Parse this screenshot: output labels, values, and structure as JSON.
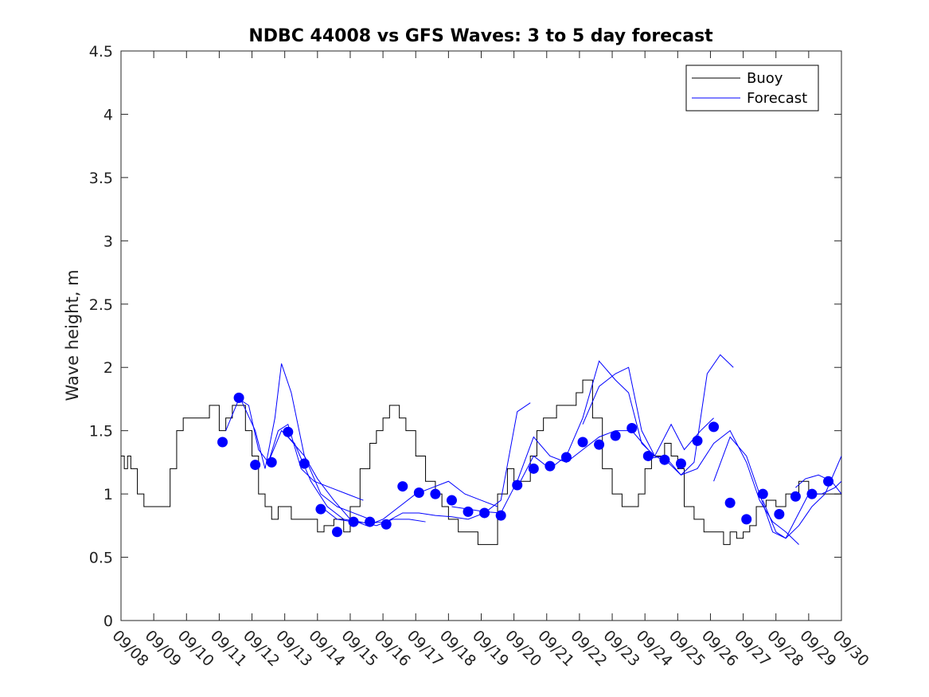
{
  "chart_data": {
    "type": "line",
    "title": "NDBC 44008 vs GFS Waves: 3 to 5 day forecast",
    "xlabel": "",
    "ylabel": "Wave height, m",
    "ylim": [
      0,
      4.5
    ],
    "yticks": [
      0,
      0.5,
      1,
      1.5,
      2,
      2.5,
      3,
      3.5,
      4,
      4.5
    ],
    "ytick_labels": [
      "0",
      "0.5",
      "1",
      "1.5",
      "2",
      "2.5",
      "3",
      "3.5",
      "4",
      "4.5"
    ],
    "xlim": [
      0,
      22
    ],
    "x_unit": "days since 09/08",
    "xtick_labels": [
      "09/08",
      "09/09",
      "09/10",
      "09/11",
      "09/12",
      "09/13",
      "09/14",
      "09/15",
      "09/16",
      "09/17",
      "09/18",
      "09/19",
      "09/20",
      "09/21",
      "09/22",
      "09/23",
      "09/24",
      "09/25",
      "09/26",
      "09/27",
      "09/28",
      "09/29",
      "09/30"
    ],
    "legend": {
      "placement": "top-right",
      "entries": [
        "Buoy",
        "Forecast"
      ]
    },
    "colors": {
      "buoy": "#000000",
      "forecast": "#0000ff"
    },
    "series": [
      {
        "name": "Buoy",
        "x": [
          0,
          0.1,
          0.2,
          0.3,
          0.5,
          0.7,
          1.0,
          1.3,
          1.5,
          1.7,
          1.9,
          2.1,
          2.4,
          2.7,
          3.0,
          3.2,
          3.4,
          3.6,
          3.8,
          4.0,
          4.2,
          4.4,
          4.6,
          4.8,
          5.0,
          5.2,
          5.4,
          5.6,
          5.8,
          6.0,
          6.2,
          6.5,
          6.8,
          7.0,
          7.3,
          7.6,
          7.8,
          8.0,
          8.2,
          8.5,
          8.7,
          9.0,
          9.3,
          9.6,
          9.8,
          10.0,
          10.3,
          10.6,
          10.9,
          11.2,
          11.5,
          11.8,
          12.0,
          12.2,
          12.5,
          12.7,
          12.9,
          13.1,
          13.3,
          13.6,
          13.9,
          14.1,
          14.4,
          14.7,
          15.0,
          15.3,
          15.6,
          15.8,
          16.0,
          16.2,
          16.4,
          16.6,
          16.8,
          17.0,
          17.2,
          17.5,
          17.8,
          18.1,
          18.4,
          18.6,
          18.8,
          19.0,
          19.2,
          19.4,
          19.7,
          20.0,
          20.3,
          20.5,
          20.7,
          21.0,
          21.3,
          21.6,
          22.0
        ],
        "y": [
          1.3,
          1.2,
          1.3,
          1.2,
          1.0,
          0.9,
          0.9,
          0.9,
          1.2,
          1.5,
          1.6,
          1.6,
          1.6,
          1.7,
          1.5,
          1.6,
          1.7,
          1.7,
          1.5,
          1.3,
          1.0,
          0.9,
          0.8,
          0.9,
          0.9,
          0.8,
          0.8,
          0.8,
          0.8,
          0.7,
          0.75,
          0.8,
          0.7,
          0.9,
          1.2,
          1.4,
          1.5,
          1.6,
          1.7,
          1.6,
          1.5,
          1.3,
          1.1,
          1.0,
          0.9,
          0.8,
          0.7,
          0.7,
          0.6,
          0.6,
          1.0,
          1.2,
          1.1,
          1.1,
          1.3,
          1.5,
          1.6,
          1.6,
          1.7,
          1.7,
          1.8,
          1.9,
          1.6,
          1.2,
          1.0,
          0.9,
          0.9,
          1.0,
          1.2,
          1.3,
          1.3,
          1.4,
          1.3,
          1.2,
          0.9,
          0.8,
          0.7,
          0.7,
          0.6,
          0.7,
          0.65,
          0.7,
          0.75,
          0.9,
          0.95,
          0.9,
          1.0,
          1.0,
          1.1,
          1.0,
          1.0,
          1.0,
          1.0
        ]
      },
      {
        "name": "Forecast",
        "markers_x": [
          3.1,
          3.6,
          4.1,
          4.6,
          5.1,
          5.6,
          6.1,
          6.6,
          7.1,
          7.6,
          8.1,
          8.6,
          9.1,
          9.6,
          10.1,
          10.6,
          11.1,
          11.6,
          12.1,
          12.6,
          13.1,
          13.6,
          14.1,
          14.6,
          15.1,
          15.6,
          16.1,
          16.6,
          17.1,
          17.6,
          18.1,
          18.6,
          19.1,
          19.6,
          20.1,
          20.6,
          21.1,
          21.6
        ],
        "markers_y": [
          1.41,
          1.76,
          1.23,
          1.25,
          1.49,
          1.24,
          0.88,
          0.7,
          0.78,
          0.78,
          0.76,
          1.06,
          1.01,
          1.0,
          0.95,
          0.86,
          0.85,
          0.83,
          1.07,
          1.2,
          1.22,
          1.29,
          1.41,
          1.39,
          1.46,
          1.52,
          1.3,
          1.27,
          1.24,
          1.42,
          1.53,
          0.93,
          0.8,
          1.0,
          0.84,
          0.98,
          1.0,
          1.1
        ],
        "runs": [
          {
            "x": [
              3.2,
              3.6,
              3.9,
              4.2,
              4.5,
              4.8,
              5.1,
              5.5,
              5.9,
              6.4,
              6.9,
              7.4
            ],
            "y": [
              1.5,
              1.75,
              1.7,
              1.35,
              1.25,
              1.5,
              1.55,
              1.2,
              1.1,
              1.05,
              1.0,
              0.95
            ]
          },
          {
            "x": [
              3.6,
              4.1,
              4.4,
              4.7,
              4.9,
              5.2,
              5.6,
              6.1,
              6.6,
              7.1,
              7.6
            ],
            "y": [
              1.78,
              1.5,
              1.2,
              1.6,
              2.03,
              1.8,
              1.3,
              1.0,
              0.9,
              0.85,
              0.8
            ]
          },
          {
            "x": [
              4.5,
              4.9,
              5.3,
              5.8,
              6.3,
              6.8,
              7.3,
              7.8,
              8.3,
              8.8,
              9.3
            ],
            "y": [
              1.25,
              1.5,
              1.4,
              1.1,
              0.9,
              0.8,
              0.78,
              0.75,
              0.8,
              0.8,
              0.78
            ]
          },
          {
            "x": [
              5.1,
              5.6,
              6.0,
              6.5,
              7.0,
              7.5,
              8.0,
              8.5,
              9.0,
              9.5,
              10.0,
              10.5,
              11.0,
              11.5
            ],
            "y": [
              1.45,
              1.3,
              1.12,
              0.95,
              0.8,
              0.75,
              0.8,
              0.9,
              1.0,
              1.05,
              1.1,
              1.0,
              0.95,
              0.9
            ]
          },
          {
            "x": [
              6.1,
              6.6,
              7.1,
              7.6,
              8.1,
              8.6,
              9.1,
              9.6,
              10.1,
              10.6,
              11.1,
              11.6,
              12.1,
              12.5
            ],
            "y": [
              0.9,
              0.8,
              0.78,
              0.77,
              0.78,
              0.85,
              0.85,
              0.83,
              0.82,
              0.8,
              0.85,
              0.95,
              1.65,
              1.72
            ]
          },
          {
            "x": [
              10.1,
              10.6,
              11.1,
              11.6,
              12.1,
              12.6,
              13.1,
              13.6,
              14.1,
              14.6,
              15.1,
              15.6,
              16.1
            ],
            "y": [
              0.9,
              0.88,
              0.86,
              0.85,
              1.1,
              1.45,
              1.3,
              1.25,
              1.35,
              1.45,
              1.5,
              1.5,
              1.35
            ]
          },
          {
            "x": [
              12.1,
              12.6,
              13.1,
              13.6,
              14.1,
              14.6,
              15.1,
              15.5,
              15.9,
              16.3,
              16.8,
              17.2,
              17.7,
              18.1
            ],
            "y": [
              1.05,
              1.3,
              1.2,
              1.3,
              1.6,
              2.05,
              1.9,
              1.8,
              1.4,
              1.3,
              1.55,
              1.35,
              1.5,
              1.6
            ]
          },
          {
            "x": [
              14.1,
              14.6,
              15.1,
              15.5,
              15.9,
              16.3,
              16.7,
              17.1,
              17.5,
              17.9,
              18.3,
              18.7
            ],
            "y": [
              1.55,
              1.85,
              1.95,
              2.0,
              1.5,
              1.3,
              1.25,
              1.15,
              1.25,
              1.95,
              2.1,
              2.0
            ]
          },
          {
            "x": [
              16.1,
              16.6,
              17.1,
              17.6,
              18.1,
              18.6,
              19.1,
              19.5,
              19.9,
              20.3,
              20.7
            ],
            "y": [
              1.28,
              1.3,
              1.15,
              1.2,
              1.4,
              1.5,
              1.25,
              0.95,
              0.78,
              0.7,
              0.6
            ]
          },
          {
            "x": [
              18.1,
              18.6,
              19.1,
              19.5,
              19.9,
              20.3,
              20.7,
              21.1,
              21.5,
              22.0
            ],
            "y": [
              1.1,
              1.45,
              1.3,
              1.0,
              0.7,
              0.65,
              0.75,
              0.9,
              1.0,
              1.3
            ]
          },
          {
            "x": [
              19.6,
              20.0,
              20.3,
              20.6,
              21.0,
              21.4,
              21.8,
              22.0
            ],
            "y": [
              0.95,
              0.7,
              0.65,
              0.8,
              1.0,
              1.0,
              1.05,
              1.1
            ]
          },
          {
            "x": [
              20.6,
              20.9,
              21.3,
              21.7,
              22.0
            ],
            "y": [
              1.05,
              1.12,
              1.15,
              1.1,
              1.0
            ]
          }
        ]
      }
    ]
  }
}
